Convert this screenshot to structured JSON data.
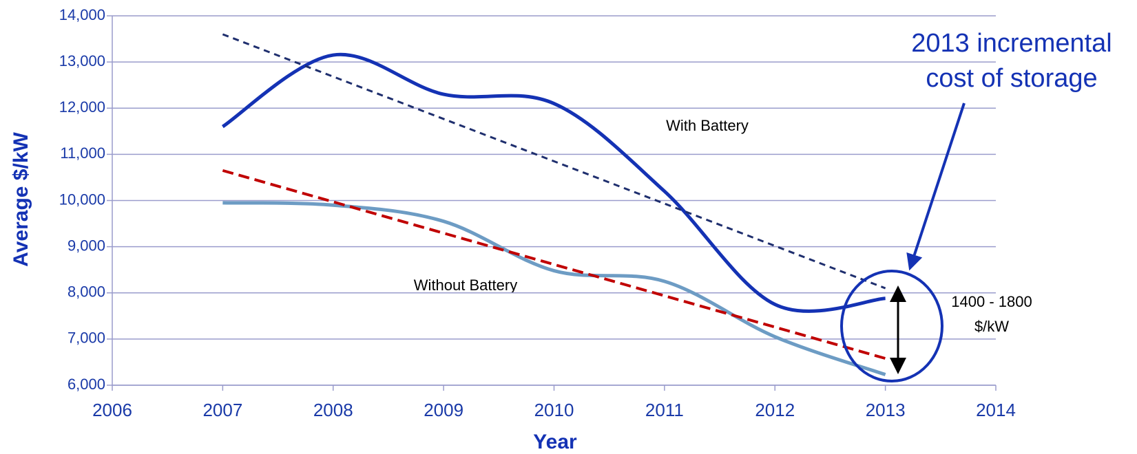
{
  "chart_data": {
    "type": "line",
    "x_label": "Year",
    "y_label": "Average $/kW",
    "xlim": [
      2006,
      2014
    ],
    "xticks": [
      2006,
      2007,
      2008,
      2009,
      2010,
      2011,
      2012,
      2013,
      2014
    ],
    "ylim": [
      6000,
      14000
    ],
    "yticks": [
      {
        "value": 6000,
        "label": "6,000"
      },
      {
        "value": 7000,
        "label": "7,000"
      },
      {
        "value": 8000,
        "label": "8,000"
      },
      {
        "value": 9000,
        "label": "9,000"
      },
      {
        "value": 10000,
        "label": "10,000"
      },
      {
        "value": 11000,
        "label": "11,000"
      },
      {
        "value": 12000,
        "label": "12,000"
      },
      {
        "value": 13000,
        "label": "13,000"
      },
      {
        "value": 14000,
        "label": "14,000"
      }
    ],
    "grid": true,
    "series": [
      {
        "name": "With Battery",
        "color": "#1432b4",
        "smooth": true,
        "x": [
          2007,
          2008,
          2009,
          2010,
          2011,
          2012,
          2013
        ],
        "values": [
          11600,
          13150,
          12300,
          12100,
          10200,
          7750,
          7880
        ]
      },
      {
        "name": "Without Battery",
        "color": "#6d9cc4",
        "smooth": true,
        "x": [
          2007,
          2008,
          2009,
          2010,
          2011,
          2012,
          2013
        ],
        "values": [
          9950,
          9900,
          9550,
          8480,
          8250,
          7050,
          6230
        ]
      },
      {
        "color": "#1f2f6e",
        "dashed": true,
        "x": [
          2007,
          2013
        ],
        "values": [
          13600,
          8100
        ]
      },
      {
        "color": "#c00000",
        "dashed": true,
        "x": [
          2007,
          2013
        ],
        "values": [
          10650,
          6580
        ]
      }
    ],
    "annotations": {
      "callout": [
        "2013 incremental",
        "cost of storage"
      ],
      "range": [
        "1400 - 1800",
        "$/kW"
      ]
    }
  }
}
